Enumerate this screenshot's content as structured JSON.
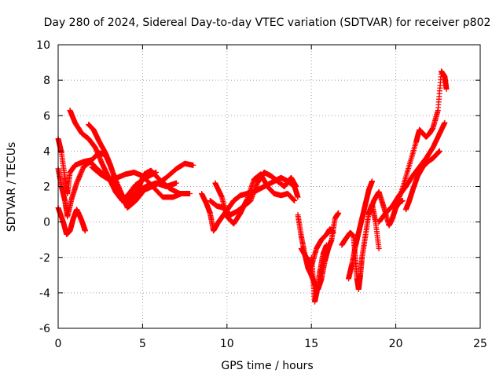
{
  "chart_data": {
    "type": "scatter",
    "title": "Day 280 of 2024, Sidereal Day-to-day VTEC variation (SDTVAR) for receiver p802",
    "xlabel": "GPS time / hours",
    "ylabel": "SDTVAR / TECUs",
    "xlim": [
      0,
      25
    ],
    "ylim": [
      -6,
      10
    ],
    "xticks": [
      "0",
      "5",
      "10",
      "15",
      "20",
      "25"
    ],
    "yticks": [
      "-6",
      "-4",
      "-2",
      "0",
      "2",
      "4",
      "6",
      "8",
      "10"
    ],
    "grid": true,
    "marker": "+",
    "color": "#ff0000",
    "series": [
      {
        "values": [
          [
            0.0,
            4.7
          ],
          [
            0.2,
            3.9
          ],
          [
            0.4,
            2.5
          ],
          [
            0.55,
            1.6
          ],
          [
            0.7,
            2.8
          ],
          [
            1.0,
            3.2
          ],
          [
            1.5,
            3.4
          ],
          [
            2.0,
            3.5
          ],
          [
            2.4,
            3.9
          ],
          [
            2.8,
            3.8
          ],
          [
            3.2,
            2.9
          ],
          [
            3.7,
            1.7
          ],
          [
            4.1,
            0.8
          ],
          [
            4.6,
            1.2
          ],
          [
            5.1,
            1.8
          ],
          [
            5.8,
            2.1
          ],
          [
            6.4,
            2.5
          ],
          [
            7.0,
            3.0
          ],
          [
            7.5,
            3.3
          ],
          [
            8.0,
            3.2
          ]
        ]
      },
      {
        "values": [
          [
            0.0,
            3.0
          ],
          [
            0.2,
            2.0
          ],
          [
            0.4,
            1.2
          ],
          [
            0.55,
            0.3
          ],
          [
            0.8,
            1.3
          ],
          [
            1.1,
            2.2
          ],
          [
            1.5,
            3.1
          ],
          [
            1.9,
            3.4
          ],
          [
            2.3,
            3.0
          ],
          [
            2.8,
            2.6
          ],
          [
            3.2,
            2.3
          ],
          [
            3.6,
            1.8
          ],
          [
            3.9,
            1.1
          ],
          [
            4.2,
            1.3
          ],
          [
            4.6,
            1.7
          ],
          [
            5.2,
            2.0
          ],
          [
            5.8,
            2.2
          ],
          [
            6.4,
            2.0
          ],
          [
            7.0,
            2.2
          ]
        ]
      },
      {
        "values": [
          [
            0.0,
            0.8
          ],
          [
            0.3,
            0.0
          ],
          [
            0.5,
            -0.7
          ],
          [
            0.7,
            -0.5
          ],
          [
            0.9,
            0.2
          ],
          [
            1.1,
            0.7
          ],
          [
            1.3,
            0.3
          ],
          [
            1.5,
            -0.2
          ],
          [
            1.6,
            -0.5
          ]
        ]
      },
      {
        "values": [
          [
            0.7,
            6.3
          ],
          [
            1.0,
            5.6
          ],
          [
            1.4,
            5.0
          ],
          [
            1.8,
            4.7
          ],
          [
            2.2,
            4.2
          ],
          [
            2.6,
            3.3
          ],
          [
            3.0,
            2.5
          ],
          [
            3.4,
            1.7
          ],
          [
            3.8,
            1.2
          ],
          [
            4.2,
            1.6
          ],
          [
            4.6,
            2.1
          ],
          [
            5.2,
            2.5
          ],
          [
            5.8,
            2.8
          ]
        ]
      },
      {
        "values": [
          [
            1.8,
            5.5
          ],
          [
            2.1,
            5.2
          ],
          [
            2.4,
            4.6
          ],
          [
            2.8,
            3.9
          ],
          [
            3.1,
            3.2
          ],
          [
            3.4,
            2.3
          ],
          [
            3.8,
            1.5
          ],
          [
            4.2,
            1.0
          ],
          [
            4.5,
            1.3
          ],
          [
            4.8,
            2.0
          ],
          [
            5.1,
            2.7
          ],
          [
            5.5,
            2.9
          ],
          [
            6.0,
            2.4
          ],
          [
            6.6,
            1.9
          ],
          [
            7.2,
            1.6
          ],
          [
            7.8,
            1.6
          ]
        ]
      },
      {
        "values": [
          [
            2.0,
            3.1
          ],
          [
            2.5,
            2.7
          ],
          [
            3.0,
            2.4
          ],
          [
            3.5,
            2.5
          ],
          [
            4.0,
            2.7
          ],
          [
            4.5,
            2.8
          ],
          [
            5.0,
            2.6
          ],
          [
            5.6,
            2.0
          ],
          [
            6.2,
            1.4
          ],
          [
            6.8,
            1.4
          ],
          [
            7.3,
            1.6
          ]
        ]
      },
      {
        "values": [
          [
            8.5,
            1.6
          ],
          [
            8.8,
            1.0
          ],
          [
            9.0,
            0.5
          ],
          [
            9.2,
            -0.5
          ],
          [
            9.5,
            0.0
          ],
          [
            9.8,
            0.4
          ],
          [
            10.1,
            0.8
          ],
          [
            10.4,
            1.2
          ],
          [
            10.8,
            1.5
          ],
          [
            11.2,
            1.6
          ],
          [
            11.6,
            1.7
          ],
          [
            12.0,
            1.9
          ],
          [
            12.4,
            2.1
          ],
          [
            12.8,
            2.3
          ],
          [
            13.2,
            2.5
          ],
          [
            13.6,
            2.3
          ],
          [
            14.0,
            2.0
          ],
          [
            14.2,
            1.4
          ]
        ]
      },
      {
        "values": [
          [
            9.3,
            2.2
          ],
          [
            9.7,
            1.4
          ],
          [
            10.0,
            0.3
          ],
          [
            10.4,
            -0.1
          ],
          [
            10.8,
            0.5
          ],
          [
            11.2,
            1.3
          ],
          [
            11.6,
            2.4
          ],
          [
            12.0,
            2.7
          ],
          [
            12.4,
            2.0
          ],
          [
            12.8,
            1.6
          ],
          [
            13.2,
            1.5
          ],
          [
            13.6,
            1.6
          ],
          [
            14.0,
            1.2
          ]
        ]
      },
      {
        "values": [
          [
            9.0,
            1.2
          ],
          [
            9.4,
            0.9
          ],
          [
            9.8,
            0.8
          ],
          [
            10.2,
            0.4
          ],
          [
            10.6,
            0.6
          ],
          [
            11.0,
            0.9
          ],
          [
            11.4,
            1.2
          ],
          [
            11.8,
            2.2
          ],
          [
            12.2,
            2.8
          ],
          [
            12.6,
            2.6
          ],
          [
            13.0,
            2.3
          ],
          [
            13.4,
            2.0
          ],
          [
            13.8,
            2.5
          ],
          [
            14.1,
            2.0
          ]
        ]
      },
      {
        "values": [
          [
            14.2,
            0.4
          ],
          [
            14.4,
            -0.8
          ],
          [
            14.6,
            -1.8
          ],
          [
            14.8,
            -2.6
          ],
          [
            15.0,
            -3.0
          ],
          [
            15.2,
            -3.5
          ],
          [
            15.4,
            -3.8
          ],
          [
            15.6,
            -3.2
          ],
          [
            15.8,
            -2.2
          ],
          [
            16.0,
            -1.5
          ],
          [
            16.2,
            -1.0
          ],
          [
            16.4,
            0.2
          ],
          [
            16.6,
            0.5
          ]
        ]
      },
      {
        "values": [
          [
            14.4,
            -1.5
          ],
          [
            14.7,
            -2.0
          ],
          [
            15.0,
            -2.5
          ],
          [
            15.3,
            -1.5
          ],
          [
            15.6,
            -1.0
          ],
          [
            15.9,
            -0.7
          ],
          [
            16.1,
            -0.4
          ],
          [
            16.3,
            -0.6
          ]
        ]
      },
      {
        "values": [
          [
            15.0,
            -2.0
          ],
          [
            15.1,
            -3.2
          ],
          [
            15.2,
            -4.5
          ],
          [
            15.35,
            -3.8
          ],
          [
            15.5,
            -2.8
          ],
          [
            15.7,
            -1.8
          ],
          [
            15.9,
            -1.3
          ]
        ]
      },
      {
        "values": [
          [
            16.8,
            -1.3
          ],
          [
            17.0,
            -1.0
          ],
          [
            17.3,
            -0.6
          ],
          [
            17.5,
            -0.8
          ],
          [
            17.6,
            -2.0
          ],
          [
            17.7,
            -3.2
          ],
          [
            17.8,
            -3.8
          ],
          [
            17.9,
            -3.0
          ],
          [
            18.0,
            -2.0
          ],
          [
            18.2,
            -0.8
          ],
          [
            18.4,
            0.5
          ],
          [
            18.6,
            1.0
          ],
          [
            18.8,
            0.0
          ],
          [
            19.0,
            -1.5
          ]
        ]
      },
      {
        "values": [
          [
            17.2,
            -3.2
          ],
          [
            17.4,
            -2.4
          ],
          [
            17.6,
            -1.4
          ],
          [
            17.8,
            -0.6
          ],
          [
            18.0,
            0.2
          ],
          [
            18.2,
            1.0
          ],
          [
            18.4,
            1.8
          ],
          [
            18.6,
            2.3
          ]
        ]
      },
      {
        "values": [
          [
            18.4,
            0.4
          ],
          [
            18.7,
            1.2
          ],
          [
            19.0,
            1.7
          ],
          [
            19.3,
            0.8
          ],
          [
            19.6,
            -0.2
          ],
          [
            19.8,
            0.2
          ],
          [
            20.0,
            0.8
          ],
          [
            20.2,
            1.1
          ],
          [
            20.4,
            1.2
          ]
        ]
      },
      {
        "values": [
          [
            19.0,
            0.0
          ],
          [
            19.4,
            0.5
          ],
          [
            19.8,
            0.9
          ],
          [
            20.2,
            1.5
          ],
          [
            20.6,
            2.0
          ],
          [
            21.0,
            2.6
          ],
          [
            21.4,
            3.1
          ],
          [
            21.8,
            3.6
          ],
          [
            22.2,
            4.2
          ],
          [
            22.6,
            5.0
          ],
          [
            22.9,
            5.6
          ]
        ]
      },
      {
        "values": [
          [
            20.0,
            0.8
          ],
          [
            20.4,
            1.9
          ],
          [
            20.8,
            3.2
          ],
          [
            21.2,
            4.5
          ],
          [
            21.4,
            5.2
          ],
          [
            21.6,
            5.0
          ],
          [
            21.8,
            4.8
          ],
          [
            22.0,
            5.0
          ],
          [
            22.2,
            5.3
          ],
          [
            22.5,
            6.3
          ],
          [
            22.7,
            8.5
          ],
          [
            22.9,
            8.2
          ],
          [
            23.0,
            7.5
          ]
        ]
      },
      {
        "values": [
          [
            20.6,
            0.7
          ],
          [
            20.8,
            1.2
          ],
          [
            21.0,
            1.8
          ],
          [
            21.3,
            2.6
          ],
          [
            21.6,
            3.1
          ],
          [
            21.9,
            3.4
          ],
          [
            22.2,
            3.6
          ],
          [
            22.4,
            3.8
          ],
          [
            22.6,
            4.0
          ]
        ]
      }
    ]
  }
}
